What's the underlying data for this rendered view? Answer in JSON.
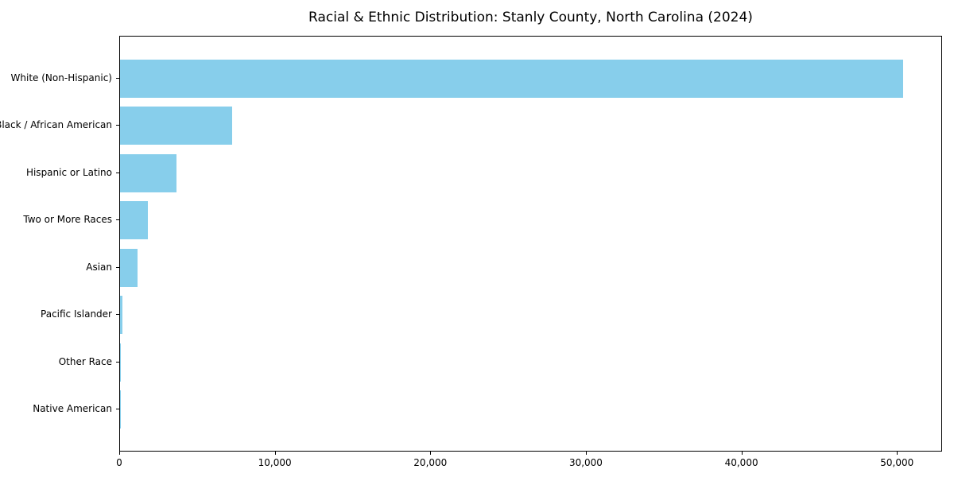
{
  "figure": {
    "background": "#ffffff",
    "frame_color": "#000000"
  },
  "chart_data": {
    "type": "bar",
    "orientation": "horizontal",
    "title": "Racial & Ethnic Distribution: Stanly County, North Carolina (2024)",
    "categories": [
      "White (Non-Hispanic)",
      "Black / African American",
      "Hispanic or Latino",
      "Two or More Races",
      "Asian",
      "Pacific Islander",
      "Other Race",
      "Native American"
    ],
    "values": [
      50450,
      7230,
      3650,
      1780,
      1150,
      150,
      50,
      20
    ],
    "xlabel": "",
    "ylabel": "",
    "xlim": [
      0,
      52900
    ],
    "xticks": {
      "values": [
        0,
        10000,
        20000,
        30000,
        40000,
        50000
      ],
      "labels": [
        "0",
        "10,000",
        "20,000",
        "30,000",
        "40,000",
        "50,000"
      ]
    },
    "bar_color": "#87CEEB",
    "grid": false,
    "legend_position": "none",
    "sort_order": "descending"
  }
}
